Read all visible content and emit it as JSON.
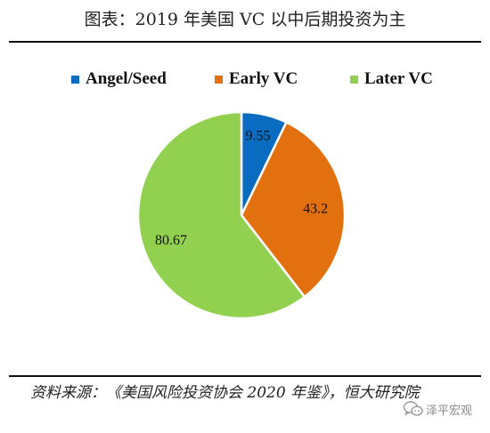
{
  "title": "图表：2019 年美国 VC 以中后期投资为主",
  "source": "资料来源：《美国风险投资协会 2020 年鉴》，恒大研究院",
  "watermark": "泽平宏观",
  "watermark_icon": "chat-bubbles-icon",
  "chart_data": {
    "type": "pie",
    "title": "",
    "legend_position": "top",
    "start_angle": "12 o'clock",
    "direction": "clockwise",
    "slices": [
      {
        "label": "Angel/Seed",
        "value": 9.55,
        "value_label": "9.55",
        "color": "#0a6cc1"
      },
      {
        "label": "Early VC",
        "value": 43.2,
        "value_label": "43.2",
        "color": "#e2700f"
      },
      {
        "label": "Later VC",
        "value": 80.67,
        "value_label": "80.67",
        "color": "#92d050"
      }
    ]
  }
}
